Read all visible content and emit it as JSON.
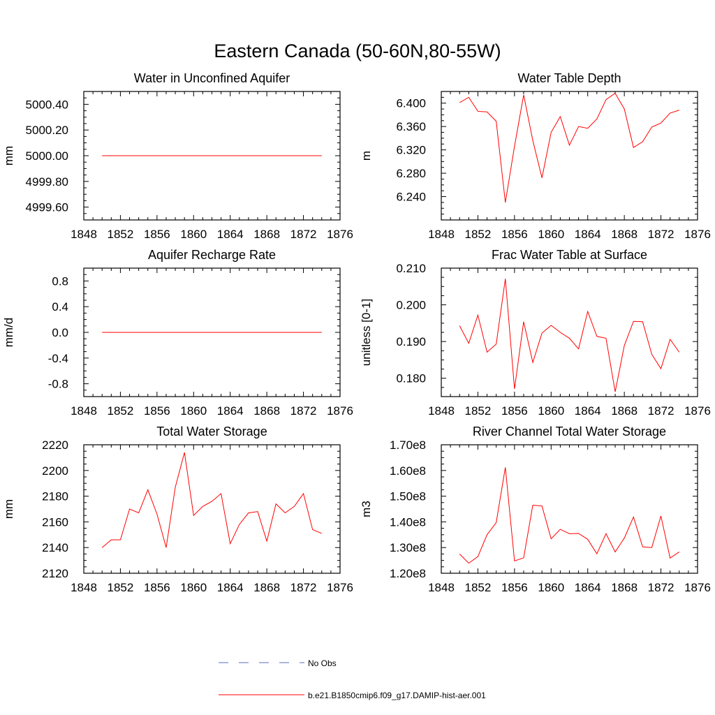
{
  "figure": {
    "title": "Eastern Canada (50-60N,80-55W)",
    "legend": [
      {
        "label": "No Obs",
        "color": "#5b6bb8",
        "style": "dashed"
      },
      {
        "label": "b.e21.B1850cmip6.f09_g17.DAMIP-hist-aer.001",
        "color": "#ff0000",
        "style": "solid"
      }
    ]
  },
  "chart_data": [
    {
      "type": "line",
      "title": "Water in Unconfined Aquifer",
      "ylabel": "mm",
      "xlim": [
        1848,
        1876
      ],
      "xticks": [
        "1848",
        "1852",
        "1856",
        "1860",
        "1864",
        "1868",
        "1872",
        "1876"
      ],
      "ylim": [
        4999.5,
        5000.5
      ],
      "yticks": [
        4999.6,
        4999.8,
        5000.0,
        5000.2,
        5000.4
      ],
      "ytick_labels": [
        "4999.60",
        "4999.80",
        "5000.00",
        "5000.20",
        "5000.40"
      ],
      "series": [
        {
          "color": "#ff0000",
          "x": [
            1850,
            1851,
            1852,
            1853,
            1854,
            1855,
            1856,
            1857,
            1858,
            1859,
            1860,
            1861,
            1862,
            1863,
            1864,
            1865,
            1866,
            1867,
            1868,
            1869,
            1870,
            1871,
            1872,
            1873,
            1874
          ],
          "values": [
            5000,
            5000,
            5000,
            5000,
            5000,
            5000,
            5000,
            5000,
            5000,
            5000,
            5000,
            5000,
            5000,
            5000,
            5000,
            5000,
            5000,
            5000,
            5000,
            5000,
            5000,
            5000,
            5000,
            5000,
            5000
          ]
        }
      ]
    },
    {
      "type": "line",
      "title": "Water Table Depth",
      "ylabel": "m",
      "xlim": [
        1848,
        1876
      ],
      "xticks": [
        "1848",
        "1852",
        "1856",
        "1860",
        "1864",
        "1868",
        "1872",
        "1876"
      ],
      "ylim": [
        6.2,
        6.42
      ],
      "yticks": [
        6.24,
        6.28,
        6.32,
        6.36,
        6.4
      ],
      "ytick_labels": [
        "6.240",
        "6.280",
        "6.320",
        "6.360",
        "6.400"
      ],
      "series": [
        {
          "color": "#ff0000",
          "x": [
            1850,
            1851,
            1852,
            1853,
            1854,
            1855,
            1856,
            1857,
            1858,
            1859,
            1860,
            1861,
            1862,
            1863,
            1864,
            1865,
            1866,
            1867,
            1868,
            1869,
            1870,
            1871,
            1872,
            1873,
            1874
          ],
          "values": [
            6.401,
            6.41,
            6.386,
            6.385,
            6.369,
            6.23,
            6.326,
            6.414,
            6.336,
            6.272,
            6.35,
            6.377,
            6.328,
            6.36,
            6.357,
            6.373,
            6.406,
            6.417,
            6.39,
            6.324,
            6.334,
            6.359,
            6.366,
            6.383,
            6.388
          ]
        }
      ]
    },
    {
      "type": "line",
      "title": "Aquifer Recharge Rate",
      "ylabel": "mm/d",
      "xlim": [
        1848,
        1876
      ],
      "xticks": [
        "1848",
        "1852",
        "1856",
        "1860",
        "1864",
        "1868",
        "1872",
        "1876"
      ],
      "ylim": [
        -1.0,
        1.0
      ],
      "yticks": [
        -0.8,
        -0.4,
        0.0,
        0.4,
        0.8
      ],
      "ytick_labels": [
        "-0.8",
        "-0.4",
        "0.0",
        "0.4",
        "0.8"
      ],
      "series": [
        {
          "color": "#ff0000",
          "x": [
            1850,
            1851,
            1852,
            1853,
            1854,
            1855,
            1856,
            1857,
            1858,
            1859,
            1860,
            1861,
            1862,
            1863,
            1864,
            1865,
            1866,
            1867,
            1868,
            1869,
            1870,
            1871,
            1872,
            1873,
            1874
          ],
          "values": [
            0,
            0,
            0,
            0,
            0,
            0,
            0,
            0,
            0,
            0,
            0,
            0,
            0,
            0,
            0,
            0,
            0,
            0,
            0,
            0,
            0,
            0,
            0,
            0,
            0
          ]
        }
      ]
    },
    {
      "type": "line",
      "title": "Frac Water Table at Surface",
      "ylabel": "unitless [0-1]",
      "xlim": [
        1848,
        1876
      ],
      "xticks": [
        "1848",
        "1852",
        "1856",
        "1860",
        "1864",
        "1868",
        "1872",
        "1876"
      ],
      "ylim": [
        0.175,
        0.21
      ],
      "yticks": [
        0.18,
        0.19,
        0.2,
        0.21
      ],
      "ytick_labels": [
        "0.180",
        "0.190",
        "0.200",
        "0.210"
      ],
      "series": [
        {
          "color": "#ff0000",
          "x": [
            1850,
            1851,
            1852,
            1853,
            1854,
            1855,
            1856,
            1857,
            1858,
            1859,
            1860,
            1861,
            1862,
            1863,
            1864,
            1865,
            1866,
            1867,
            1868,
            1869,
            1870,
            1871,
            1872,
            1873,
            1874
          ],
          "values": [
            0.1943,
            0.1895,
            0.1972,
            0.1871,
            0.1893,
            0.2071,
            0.1771,
            0.1954,
            0.1843,
            0.1923,
            0.1944,
            0.1925,
            0.1909,
            0.188,
            0.1982,
            0.1914,
            0.1909,
            0.1763,
            0.1889,
            0.1955,
            0.1954,
            0.1865,
            0.1826,
            0.1906,
            0.1871
          ]
        }
      ]
    },
    {
      "type": "line",
      "title": "Total Water Storage",
      "ylabel": "mm",
      "xlim": [
        1848,
        1876
      ],
      "xticks": [
        "1848",
        "1852",
        "1856",
        "1860",
        "1864",
        "1868",
        "1872",
        "1876"
      ],
      "ylim": [
        2120,
        2220
      ],
      "yticks": [
        2120,
        2140,
        2160,
        2180,
        2200,
        2220
      ],
      "ytick_labels": [
        "2120",
        "2140",
        "2160",
        "2180",
        "2200",
        "2220"
      ],
      "series": [
        {
          "color": "#ff0000",
          "x": [
            1850,
            1851,
            1852,
            1853,
            1854,
            1855,
            1856,
            1857,
            1858,
            1859,
            1860,
            1861,
            1862,
            1863,
            1864,
            1865,
            1866,
            1867,
            1868,
            1869,
            1870,
            1871,
            1872,
            1873,
            1874
          ],
          "values": [
            2140,
            2146,
            2146,
            2170,
            2167,
            2185,
            2166,
            2140,
            2187,
            2214,
            2165,
            2172,
            2176,
            2182,
            2143,
            2158,
            2167,
            2168,
            2145,
            2174,
            2167,
            2172,
            2182,
            2154,
            2151
          ]
        }
      ]
    },
    {
      "type": "line",
      "title": "River Channel Total Water Storage",
      "ylabel": "m3",
      "xlim": [
        1848,
        1876
      ],
      "xticks": [
        "1848",
        "1852",
        "1856",
        "1860",
        "1864",
        "1868",
        "1872",
        "1876"
      ],
      "ylim": [
        120000000,
        170000000
      ],
      "yticks": [
        120000000,
        130000000,
        140000000,
        150000000,
        160000000,
        170000000
      ],
      "ytick_labels": [
        "1.20e8",
        "1.30e8",
        "1.40e8",
        "1.50e8",
        "1.60e8",
        "1.70e8"
      ],
      "series": [
        {
          "color": "#ff0000",
          "x": [
            1850,
            1851,
            1852,
            1853,
            1854,
            1855,
            1856,
            1857,
            1858,
            1859,
            1860,
            1861,
            1862,
            1863,
            1864,
            1865,
            1866,
            1867,
            1868,
            1869,
            1870,
            1871,
            1872,
            1873,
            1874
          ],
          "values": [
            127500000,
            123900000,
            126500000,
            135000000,
            139700000,
            161200000,
            124800000,
            126000000,
            146500000,
            146200000,
            133400000,
            137100000,
            135400000,
            135500000,
            133200000,
            127600000,
            135400000,
            128300000,
            133700000,
            141900000,
            130300000,
            130000000,
            142300000,
            125900000,
            128300000
          ]
        }
      ]
    }
  ]
}
